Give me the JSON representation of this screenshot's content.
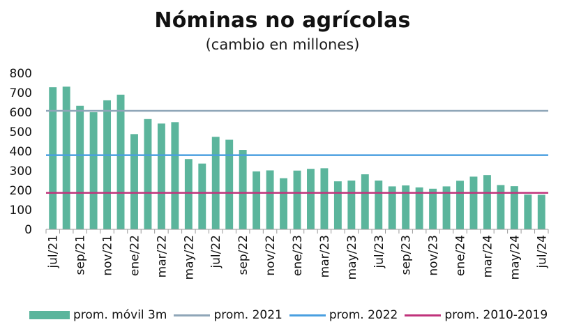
{
  "chart_data": {
    "type": "bar",
    "title": "Nóminas no agrícolas",
    "subtitle": "(cambio en millones)",
    "categories": [
      "jul/21",
      "ago/21",
      "sep/21",
      "oct/21",
      "nov/21",
      "dic/21",
      "ene/22",
      "feb/22",
      "mar/22",
      "abr/22",
      "may/22",
      "jun/22",
      "jul/22",
      "ago/22",
      "sep/22",
      "oct/22",
      "nov/22",
      "dic/22",
      "ene/23",
      "feb/23",
      "mar/23",
      "abr/23",
      "may/23",
      "jun/23",
      "jul/23",
      "ago/23",
      "sep/23",
      "oct/23",
      "nov/23",
      "dic/23",
      "ene/24",
      "feb/24",
      "mar/24",
      "abr/24",
      "may/24",
      "jun/24",
      "jul/24"
    ],
    "x_tick_labels": [
      "jul/21",
      "sep/21",
      "nov/21",
      "ene/22",
      "mar/22",
      "may/22",
      "jul/22",
      "sep/22",
      "nov/22",
      "ene/23",
      "mar/23",
      "may/23",
      "jul/23",
      "sep/23",
      "nov/23",
      "ene/24",
      "mar/24",
      "may/24",
      "jul/24"
    ],
    "series": [
      {
        "name": "prom. móvil 3m",
        "color": "#5bb59c",
        "values": [
          728,
          731,
          633,
          600,
          661,
          690,
          488,
          565,
          542,
          549,
          360,
          337,
          474,
          459,
          407,
          297,
          302,
          262,
          301,
          310,
          313,
          246,
          250,
          282,
          250,
          220,
          225,
          215,
          208,
          220,
          249,
          270,
          278,
          227,
          221,
          178,
          177
        ]
      }
    ],
    "reference_lines": [
      {
        "name": "prom. 2021",
        "value": 607,
        "color": "#8fa6b8"
      },
      {
        "name": "prom. 2022",
        "value": 380,
        "color": "#4a9fe0"
      },
      {
        "name": "prom. 2010-2019",
        "value": 187,
        "color": "#c0337b"
      }
    ],
    "y_ticks": [
      0,
      100,
      200,
      300,
      400,
      500,
      600,
      700,
      800
    ],
    "ylim": [
      0,
      800
    ],
    "xlabel": "",
    "ylabel": "",
    "grid": false,
    "legend_position": "bottom"
  }
}
